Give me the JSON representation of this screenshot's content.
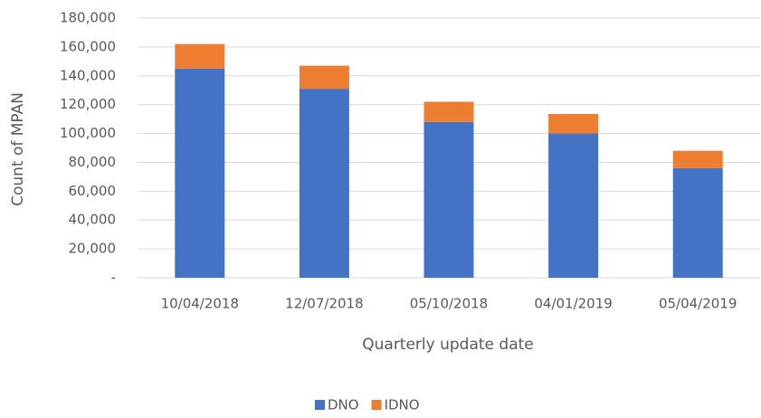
{
  "chart_data": {
    "type": "stacked_bar",
    "x_label": "Quarterly update date",
    "y_label": "Count of MPAN",
    "categories": [
      "10/04/2018",
      "12/07/2018",
      "05/10/2018",
      "04/01/2019",
      "05/04/2019"
    ],
    "series": [
      {
        "name": "DNO",
        "color": "#4472c4",
        "values": [
          145000,
          131000,
          108000,
          100000,
          76000
        ]
      },
      {
        "name": "IDNO",
        "color": "#ed7d31",
        "values": [
          17000,
          16000,
          14000,
          13500,
          12000
        ]
      }
    ],
    "ylim": [
      0,
      180000
    ],
    "yticks": [
      {
        "value": 0,
        "label": "-"
      },
      {
        "value": 20000,
        "label": "20,000"
      },
      {
        "value": 40000,
        "label": "40,000"
      },
      {
        "value": 60000,
        "label": "60,000"
      },
      {
        "value": 80000,
        "label": "80,000"
      },
      {
        "value": 100000,
        "label": "100,000"
      },
      {
        "value": 120000,
        "label": "120,000"
      },
      {
        "value": 140000,
        "label": "140,000"
      },
      {
        "value": 160000,
        "label": "160,000"
      },
      {
        "value": 180000,
        "label": "180,000"
      }
    ],
    "grid": true,
    "legend": "bottom"
  }
}
